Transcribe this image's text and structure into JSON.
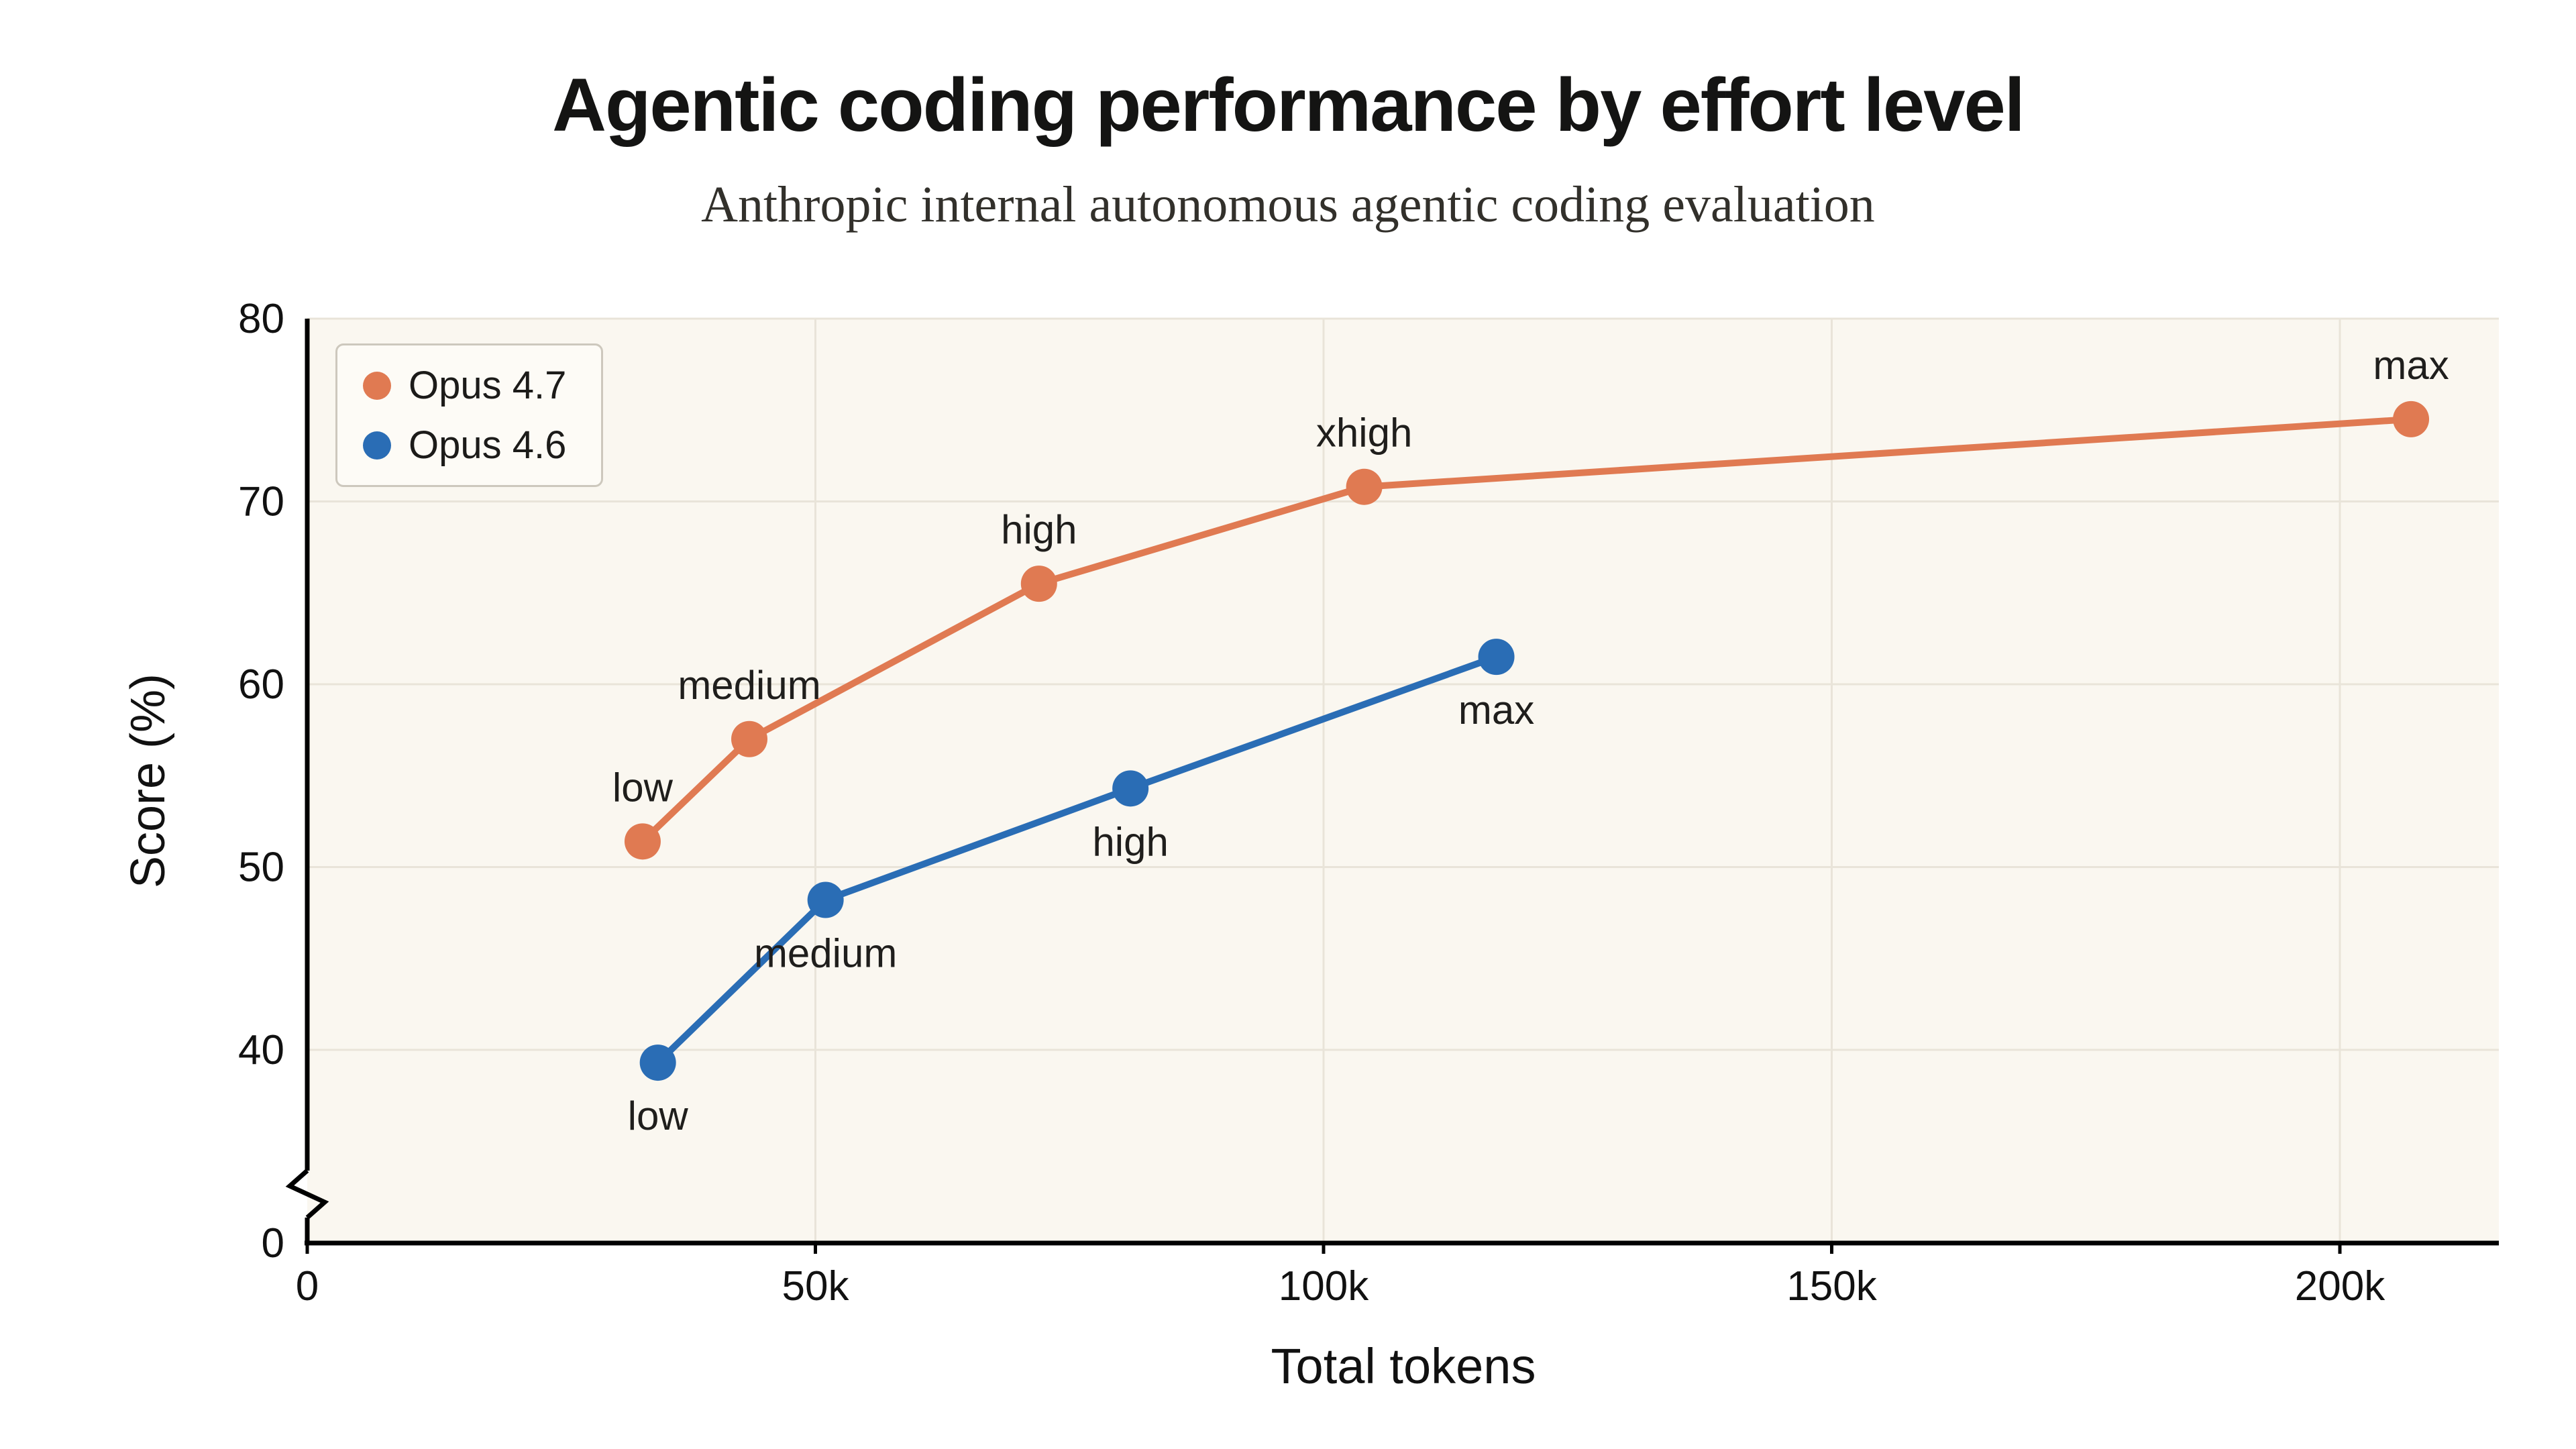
{
  "page": {
    "background": "#ffffff"
  },
  "chart_data": {
    "type": "line",
    "title": "Agentic coding performance by effort level",
    "subtitle": "Anthropic internal autonomous agentic coding evaluation",
    "xlabel": "Total tokens",
    "ylabel": "Score (%)",
    "x_ticks": [
      {
        "value": 0,
        "label": "0"
      },
      {
        "value": 50000,
        "label": "50k"
      },
      {
        "value": 100000,
        "label": "100k"
      },
      {
        "value": 150000,
        "label": "150k"
      },
      {
        "value": 200000,
        "label": "200k"
      }
    ],
    "y_ticks": [
      {
        "value": 40,
        "label": "40"
      },
      {
        "value": 50,
        "label": "50"
      },
      {
        "value": 60,
        "label": "60"
      },
      {
        "value": 70,
        "label": "70"
      },
      {
        "value": 80,
        "label": "80"
      }
    ],
    "y_zero_label": "0",
    "y_axis_break": true,
    "xlim": [
      0,
      215000
    ],
    "ylim": [
      0,
      80
    ],
    "ylim_display": [
      40,
      80
    ],
    "grid": true,
    "legend_position": "top-left",
    "style": {
      "plot_bg": "#faf7f0",
      "grid_color": "#e9e4d9",
      "axis_color": "#000000",
      "label_color": "#1f1e1c",
      "tick_color": "#111111"
    },
    "series": [
      {
        "name": "Opus 4.7",
        "color": "#E07A52",
        "label_placement": "above",
        "points": [
          {
            "label": "low",
            "x": 33000,
            "y": 51.4
          },
          {
            "label": "medium",
            "x": 43500,
            "y": 57.0
          },
          {
            "label": "high",
            "x": 72000,
            "y": 65.5
          },
          {
            "label": "xhigh",
            "x": 104000,
            "y": 70.8
          },
          {
            "label": "max",
            "x": 207000,
            "y": 74.5
          }
        ]
      },
      {
        "name": "Opus 4.6",
        "color": "#2A6DB5",
        "label_placement": "below",
        "points": [
          {
            "label": "low",
            "x": 34500,
            "y": 39.3
          },
          {
            "label": "medium",
            "x": 51000,
            "y": 48.2
          },
          {
            "label": "high",
            "x": 81000,
            "y": 54.3
          },
          {
            "label": "max",
            "x": 117000,
            "y": 61.5
          }
        ]
      }
    ]
  }
}
